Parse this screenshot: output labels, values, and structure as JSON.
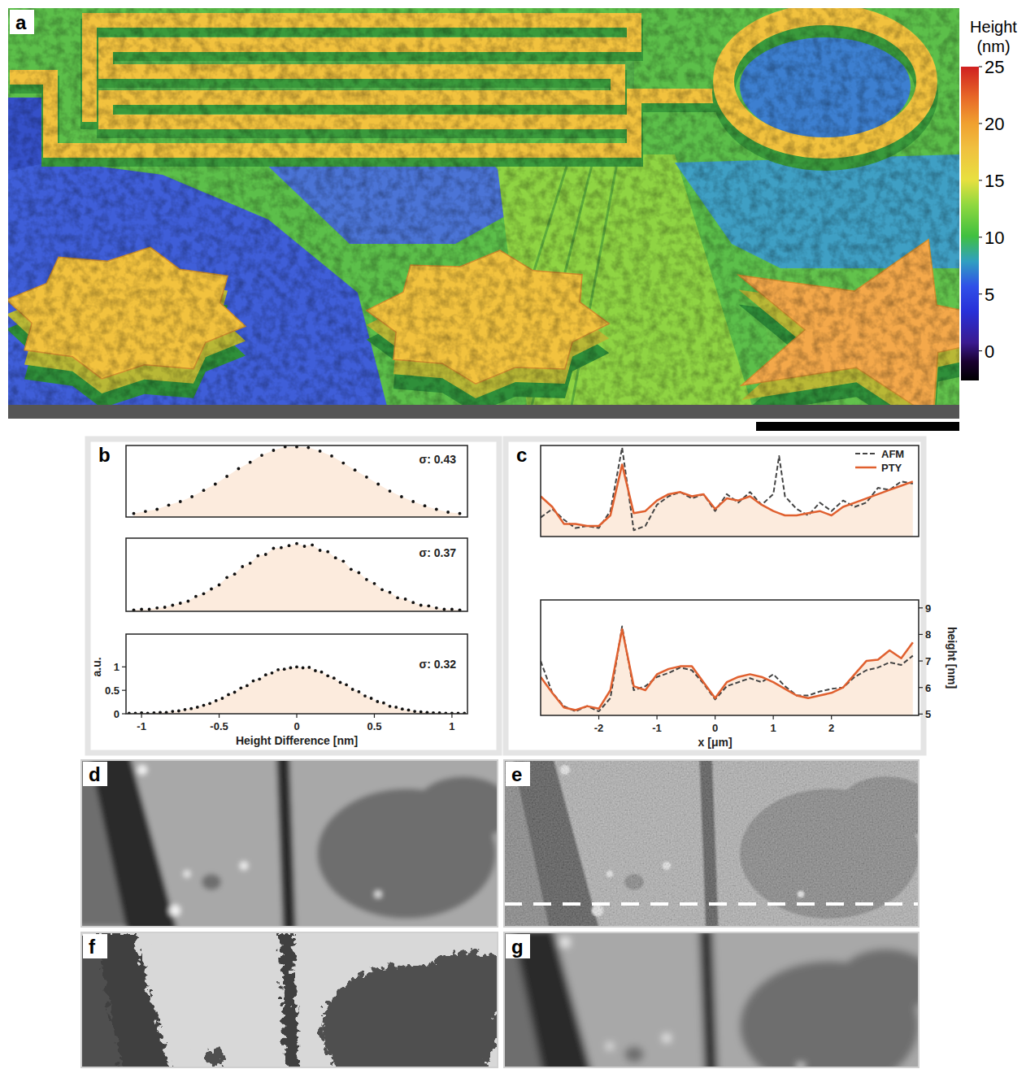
{
  "chart_data": [
    {
      "type": "surface",
      "label": "a",
      "colorbar": {
        "title": "Height (nm)",
        "range": [
          -2.6,
          25
        ],
        "ticks": [
          0,
          5,
          10,
          15,
          20,
          25
        ]
      }
    },
    {
      "type": "scatter",
      "label": "b",
      "annotation": "σ: 0.43",
      "color": "#111111",
      "marker": "dot",
      "tick_labels": false,
      "xlim": [
        -1.1,
        1.1
      ],
      "ylim": [
        0,
        1.02
      ],
      "x": [
        -1.05,
        -0.975,
        -0.9,
        -0.825,
        -0.75,
        -0.675,
        -0.6,
        -0.525,
        -0.45,
        -0.375,
        -0.3,
        -0.225,
        -0.15,
        -0.075,
        0,
        0.075,
        0.15,
        0.225,
        0.3,
        0.375,
        0.45,
        0.525,
        0.6,
        0.675,
        0.75,
        0.825,
        0.9,
        0.975,
        1.05
      ],
      "values": [
        0.05,
        0.08,
        0.11,
        0.17,
        0.22,
        0.29,
        0.38,
        0.47,
        0.58,
        0.69,
        0.78,
        0.88,
        0.95,
        1.0,
        1.0,
        0.99,
        0.94,
        0.87,
        0.77,
        0.67,
        0.57,
        0.47,
        0.37,
        0.29,
        0.22,
        0.16,
        0.11,
        0.07,
        0.05
      ]
    },
    {
      "type": "scatter",
      "annotation": "σ: 0.37",
      "color": "#111111",
      "marker": "dot",
      "tick_labels": false,
      "xlim": [
        -1.1,
        1.1
      ],
      "ylim": [
        0,
        1.08
      ],
      "x": [
        -1.05,
        -1.0,
        -0.95,
        -0.9,
        -0.85,
        -0.8,
        -0.75,
        -0.7,
        -0.65,
        -0.6,
        -0.55,
        -0.5,
        -0.45,
        -0.4,
        -0.35,
        -0.3,
        -0.25,
        -0.2,
        -0.15,
        -0.1,
        -0.05,
        0,
        0.05,
        0.1,
        0.15,
        0.2,
        0.25,
        0.3,
        0.35,
        0.4,
        0.45,
        0.5,
        0.55,
        0.6,
        0.65,
        0.7,
        0.75,
        0.8,
        0.85,
        0.9,
        0.95,
        1.0,
        1.05
      ],
      "values": [
        0.02,
        0.03,
        0.03,
        0.05,
        0.06,
        0.09,
        0.12,
        0.15,
        0.22,
        0.26,
        0.33,
        0.39,
        0.5,
        0.55,
        0.66,
        0.71,
        0.82,
        0.84,
        0.93,
        0.94,
        0.97,
        1.0,
        0.96,
        0.98,
        0.9,
        0.88,
        0.79,
        0.74,
        0.62,
        0.57,
        0.47,
        0.41,
        0.32,
        0.28,
        0.2,
        0.18,
        0.13,
        0.09,
        0.08,
        0.05,
        0.03,
        0.03,
        0.02
      ]
    },
    {
      "type": "scatter",
      "annotation": "σ: 0.32",
      "color": "#111111",
      "marker": "dot",
      "x_label": "Height Difference [nm]",
      "y_label": "a.u.",
      "xlim": [
        -1.1,
        1.1
      ],
      "ylim": [
        0,
        1.7
      ],
      "xticks": [
        -1,
        -0.5,
        0,
        0.5,
        1
      ],
      "yticks": [
        0,
        0.5,
        1
      ],
      "x": [
        -1.08,
        -1.04,
        -1.0,
        -0.96,
        -0.92,
        -0.88,
        -0.84,
        -0.8,
        -0.76,
        -0.72,
        -0.68,
        -0.64,
        -0.6,
        -0.56,
        -0.52,
        -0.48,
        -0.44,
        -0.4,
        -0.36,
        -0.32,
        -0.28,
        -0.24,
        -0.2,
        -0.16,
        -0.12,
        -0.08,
        -0.04,
        0,
        0.04,
        0.08,
        0.12,
        0.16,
        0.2,
        0.24,
        0.28,
        0.32,
        0.36,
        0.4,
        0.44,
        0.48,
        0.52,
        0.56,
        0.6,
        0.64,
        0.68,
        0.72,
        0.76,
        0.8,
        0.84,
        0.88,
        0.92,
        0.96,
        1.0,
        1.04,
        1.08
      ],
      "values": [
        0.01,
        0.01,
        0.02,
        0.01,
        0.02,
        0.03,
        0.03,
        0.05,
        0.06,
        0.09,
        0.11,
        0.14,
        0.18,
        0.22,
        0.28,
        0.33,
        0.41,
        0.46,
        0.55,
        0.6,
        0.7,
        0.74,
        0.83,
        0.87,
        0.94,
        0.95,
        0.98,
        1.0,
        0.98,
        0.99,
        0.92,
        0.89,
        0.81,
        0.76,
        0.67,
        0.62,
        0.52,
        0.47,
        0.38,
        0.33,
        0.26,
        0.23,
        0.16,
        0.14,
        0.1,
        0.08,
        0.05,
        0.04,
        0.03,
        0.02,
        0.02,
        0.01,
        0.01,
        0.01,
        0.01
      ]
    },
    {
      "type": "line",
      "label": "c",
      "tick_labels": false,
      "legend": "top-right",
      "xlim": [
        -3.0,
        3.5
      ],
      "ylim": [
        5.0,
        9.3
      ],
      "x": [
        -3.0,
        -2.8,
        -2.6,
        -2.4,
        -2.2,
        -2.0,
        -1.8,
        -1.6,
        -1.4,
        -1.2,
        -1.0,
        -0.8,
        -0.6,
        -0.4,
        -0.2,
        0,
        0.2,
        0.4,
        0.6,
        0.8,
        1.0,
        1.1,
        1.2,
        1.4,
        1.6,
        1.8,
        2.0,
        2.2,
        2.4,
        2.6,
        2.8,
        3.0,
        3.2,
        3.4
      ],
      "series": [
        {
          "name": "AFM",
          "color": "#444444",
          "line_style": "dashed",
          "values": [
            5.9,
            6.3,
            5.8,
            5.4,
            5.5,
            5.4,
            6.2,
            9.2,
            5.3,
            5.5,
            6.5,
            6.9,
            7.1,
            6.8,
            7.0,
            6.2,
            7.0,
            6.6,
            7.1,
            6.5,
            7.0,
            8.8,
            6.9,
            6.3,
            6.0,
            6.6,
            6.2,
            6.7,
            6.4,
            6.6,
            7.3,
            7.2,
            7.6,
            7.5
          ]
        },
        {
          "name": "PTY",
          "color": "#e0602f",
          "line_style": "solid",
          "values": [
            6.9,
            6.4,
            5.6,
            5.6,
            5.5,
            5.5,
            6.0,
            8.4,
            6.1,
            6.2,
            6.7,
            7.0,
            7.1,
            6.9,
            7.0,
            6.3,
            6.8,
            6.7,
            6.9,
            6.5,
            6.2,
            6.1,
            6.0,
            6.0,
            6.1,
            6.2,
            6.0,
            6.4,
            6.6,
            6.8,
            7.0,
            7.2,
            7.4,
            7.6
          ]
        }
      ]
    },
    {
      "type": "line",
      "x_label": "x [μm]",
      "y_label": "height [nm]",
      "xlim": [
        -3.0,
        3.5
      ],
      "ylim": [
        4.95,
        9.3
      ],
      "xticks": [
        -2,
        -1,
        0,
        1,
        2
      ],
      "yticks": [
        5,
        6,
        7,
        8,
        9
      ],
      "x": [
        -3.0,
        -2.8,
        -2.6,
        -2.4,
        -2.2,
        -2.0,
        -1.8,
        -1.6,
        -1.4,
        -1.2,
        -1.0,
        -0.8,
        -0.6,
        -0.4,
        -0.2,
        0,
        0.2,
        0.4,
        0.6,
        0.8,
        1.0,
        1.2,
        1.4,
        1.6,
        1.8,
        2.0,
        2.2,
        2.4,
        2.6,
        2.8,
        3.0,
        3.2,
        3.4
      ],
      "series": [
        {
          "name": "AFM",
          "color": "#444444",
          "line_style": "dashed",
          "values": [
            7.0,
            5.8,
            5.3,
            5.1,
            5.3,
            5.1,
            5.6,
            8.3,
            5.9,
            6.05,
            6.4,
            6.55,
            6.75,
            6.65,
            6.15,
            5.55,
            6.05,
            6.2,
            6.35,
            6.2,
            6.5,
            6.05,
            5.7,
            5.7,
            5.85,
            5.95,
            6.0,
            6.4,
            6.65,
            6.75,
            6.95,
            6.85,
            7.2
          ]
        },
        {
          "name": "PTY",
          "color": "#e0602f",
          "line_style": "solid",
          "values": [
            6.4,
            5.8,
            5.25,
            5.15,
            5.3,
            5.2,
            5.9,
            8.2,
            6.05,
            5.9,
            6.5,
            6.7,
            6.8,
            6.8,
            6.2,
            5.6,
            6.2,
            6.4,
            6.5,
            6.4,
            6.2,
            5.95,
            5.7,
            5.6,
            5.7,
            5.8,
            6.0,
            6.5,
            7.0,
            7.05,
            7.4,
            7.1,
            7.7
          ]
        }
      ]
    },
    {
      "type": "image",
      "label": "d"
    },
    {
      "type": "image",
      "label": "e"
    },
    {
      "type": "image",
      "label": "f"
    },
    {
      "type": "image",
      "label": "g"
    }
  ]
}
